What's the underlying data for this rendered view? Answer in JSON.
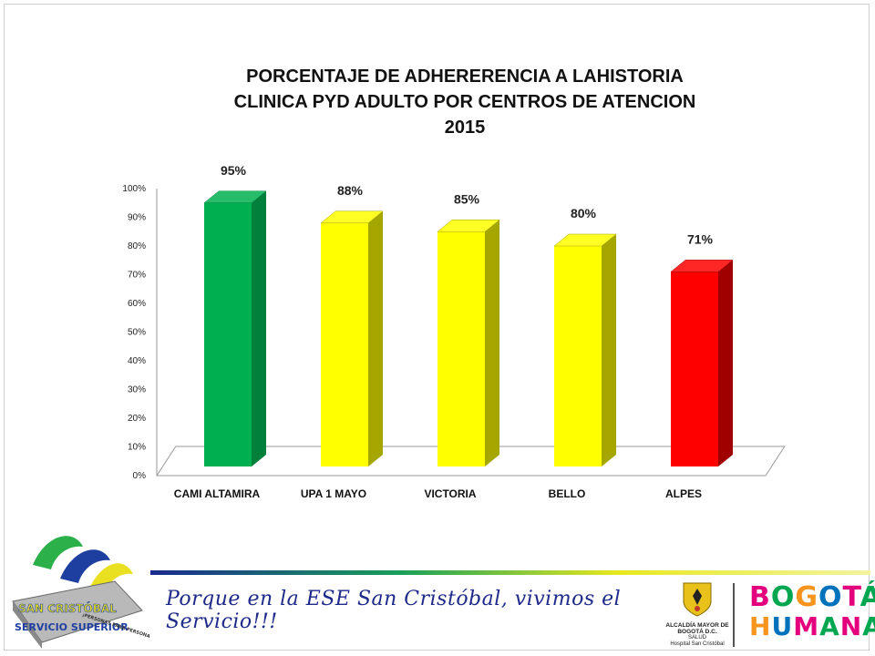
{
  "chart_data": {
    "type": "bar",
    "title": "PORCENTAJE DE ADHERERENCIA A LAHISTORIA\nCLINICA PYD ADULTO  POR CENTROS DE ATENCION\n2015",
    "categories": [
      "CAMI ALTAMIRA",
      "UPA 1 MAYO",
      "VICTORIA",
      "BELLO",
      "ALPES"
    ],
    "values": [
      95,
      88,
      85,
      80,
      71
    ],
    "data_labels": [
      "95%",
      "88%",
      "85%",
      "80%",
      "71%"
    ],
    "bar_colors": [
      "#00b050",
      "#ffff00",
      "#ffff00",
      "#ffff00",
      "#ff0000"
    ],
    "bar_side_colors": [
      "#00803a",
      "#a6a600",
      "#a6a600",
      "#a6a600",
      "#a00000"
    ],
    "ylim": [
      0,
      100
    ],
    "yticks": [
      "0%",
      "10%",
      "20%",
      "30%",
      "40%",
      "50%",
      "60%",
      "70%",
      "80%",
      "90%",
      "100%"
    ],
    "grid": false,
    "style": "3d-column"
  },
  "footer": {
    "logo_text_top": "SAN CRISTÓBAL",
    "logo_text_bottom": "SERVICIO SUPERIOR",
    "logo_ribbon": "¡PERSONAS PARA PERSONAS!",
    "slogan": "Porque en la ESE San Cristóbal, vivimos el Servicio!!!",
    "alcaldia_name": "ALCALDÍA MAYOR DE BOGOTÁ D.C.",
    "alcaldia_sector": "SALUD",
    "alcaldia_hospital": "Hospital San Cristóbal",
    "bogota_line1": "BOGOTÁ",
    "bogota_line2": "HUMANA"
  }
}
